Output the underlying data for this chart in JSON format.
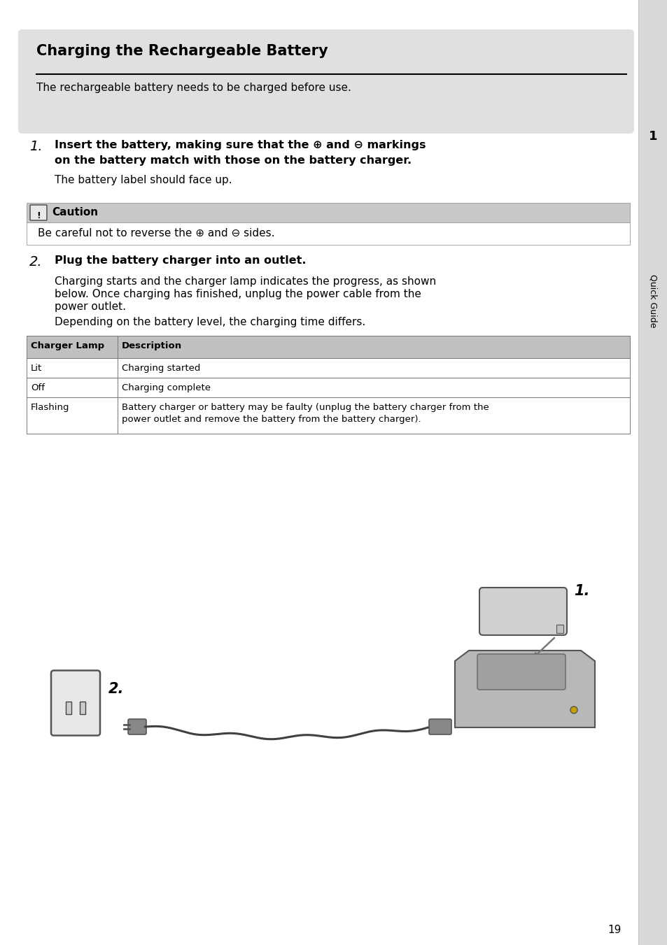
{
  "title": "Charging the Rechargeable Battery",
  "subtitle": "The rechargeable battery needs to be charged before use.",
  "step1_number": "1.",
  "step1_bold_line1": "Insert the battery, making sure that the ⊕ and ⊖ markings",
  "step1_bold_line2": "on the battery match with those on the battery charger.",
  "step1_sub": "The battery label should face up.",
  "caution_title": "Caution",
  "caution_text": "Be careful not to reverse the ⊕ and ⊖ sides.",
  "step2_number": "2.",
  "step2_bold": "Plug the battery charger into an outlet.",
  "step2_text1_line1": "Charging starts and the charger lamp indicates the progress, as shown",
  "step2_text1_line2": "below. Once charging has finished, unplug the power cable from the",
  "step2_text1_line3": "power outlet.",
  "step2_text2": "Depending on the battery level, the charging time differs.",
  "table_headers": [
    "Charger Lamp",
    "Description"
  ],
  "table_rows": [
    [
      "Lit",
      "Charging started"
    ],
    [
      "Off",
      "Charging complete"
    ],
    [
      "Flashing",
      "Battery charger or battery may be faulty (unplug the battery charger from the\npower outlet and remove the battery from the battery charger)."
    ]
  ],
  "page_number": "19",
  "sidebar_text": "Quick Guide",
  "sidebar_number": "1",
  "header_bg": "#e0e0e0",
  "caution_bg": "#c8c8c8",
  "table_header_bg": "#c0c0c0",
  "sidebar_bg": "#d8d8d8",
  "border_color": "#999999",
  "text_color": "#000000",
  "white": "#ffffff",
  "label1_text": "1.",
  "label2_text": "2."
}
